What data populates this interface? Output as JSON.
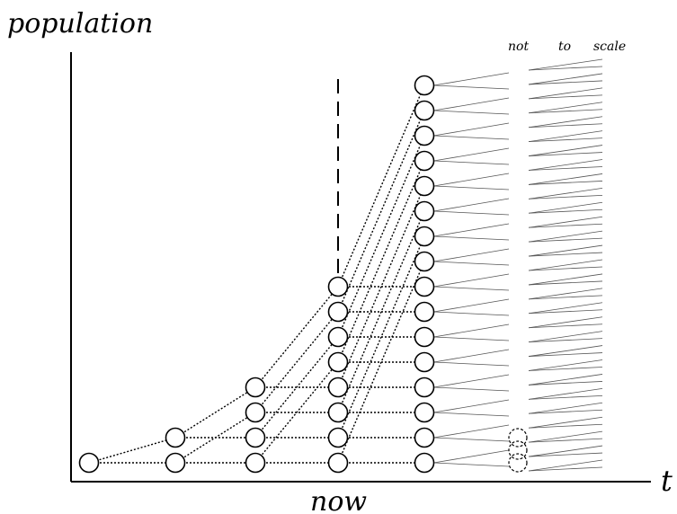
{
  "labels": {
    "y_axis": "population",
    "x_axis": "t",
    "now": "now",
    "note_words": [
      "not",
      "to",
      "scale"
    ]
  },
  "generations": [
    1,
    2,
    4,
    8,
    16,
    29
  ],
  "colors": {
    "ink": "#000000",
    "ray": "#555555",
    "background": "#ffffff"
  }
}
